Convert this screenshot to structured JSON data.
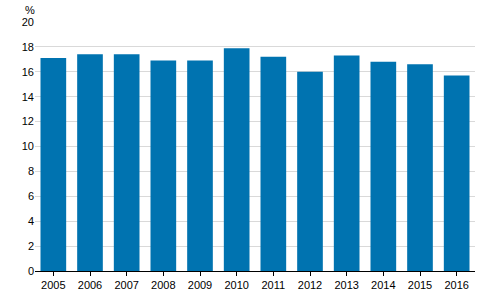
{
  "chart_data": {
    "type": "bar",
    "y_label": "%",
    "categories": [
      "2005",
      "2006",
      "2007",
      "2008",
      "2009",
      "2010",
      "2011",
      "2012",
      "2013",
      "2014",
      "2015",
      "2016"
    ],
    "values": [
      17.1,
      17.4,
      17.4,
      16.9,
      16.9,
      17.9,
      17.2,
      16.0,
      17.3,
      16.8,
      16.6,
      15.7
    ],
    "color": "#0073b0",
    "ylim": [
      0,
      20
    ],
    "yticks": [
      0,
      2,
      4,
      6,
      8,
      10,
      12,
      14,
      16,
      18,
      20
    ],
    "grid": true
  }
}
